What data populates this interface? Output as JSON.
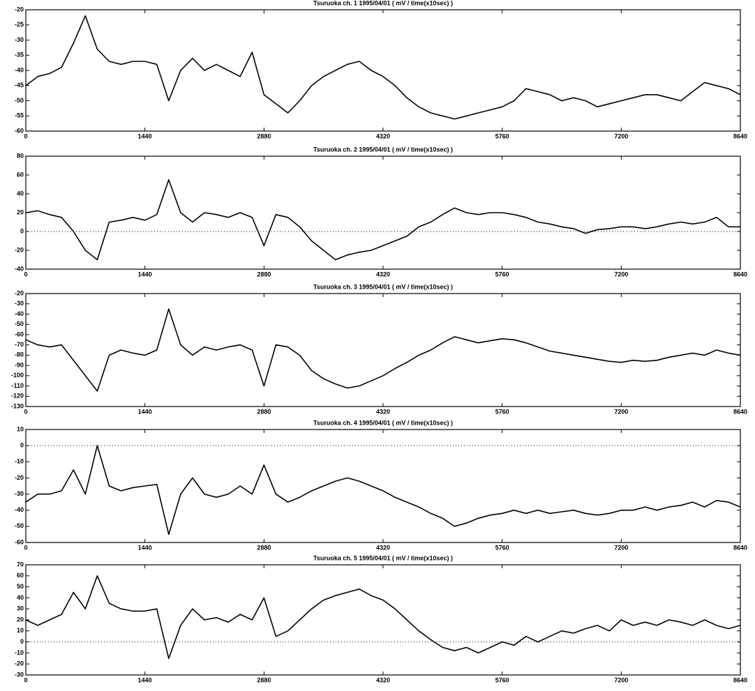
{
  "chart_data": [
    {
      "type": "line",
      "title": "Tsuruoka ch. 1 1995/04/01 ( mV / time(x10sec) )",
      "color": "#000000",
      "zero_line": false,
      "x": [
        0,
        144,
        288,
        432,
        576,
        720,
        864,
        1008,
        1152,
        1296,
        1440,
        1584,
        1728,
        1872,
        2016,
        2160,
        2304,
        2448,
        2592,
        2736,
        2880,
        3024,
        3168,
        3312,
        3456,
        3600,
        3744,
        3888,
        4032,
        4176,
        4320,
        4464,
        4608,
        4752,
        4896,
        5040,
        5184,
        5328,
        5472,
        5616,
        5760,
        5904,
        6048,
        6192,
        6336,
        6480,
        6624,
        6768,
        6912,
        7056,
        7200,
        7344,
        7488,
        7632,
        7776,
        7920,
        8064,
        8208,
        8352,
        8496,
        8640
      ],
      "values": [
        -45,
        -42,
        -41,
        -39,
        -31,
        -22,
        -33,
        -37,
        -38,
        -37,
        -37,
        -38,
        -50,
        -40,
        -36,
        -40,
        -38,
        -40,
        -42,
        -34,
        -48,
        -51,
        -54,
        -50,
        -45,
        -42,
        -40,
        -38,
        -37,
        -40,
        -42,
        -45,
        -49,
        -52,
        -54,
        -55,
        -56,
        -55,
        -54,
        -53,
        -52,
        -50,
        -46,
        -47,
        -48,
        -50,
        -49,
        -50,
        -52,
        -51,
        -50,
        -49,
        -48,
        -48,
        -49,
        -50,
        -47,
        -44,
        -45,
        -46,
        -48
      ],
      "xlim": [
        0,
        8640
      ],
      "xticks": [
        0,
        1440,
        2880,
        4320,
        5760,
        7200,
        8640
      ],
      "ylim": [
        -60,
        -20
      ],
      "yticks": [
        -60,
        -55,
        -50,
        -45,
        -40,
        -35,
        -30,
        -25,
        -20
      ]
    },
    {
      "type": "line",
      "title": "Tsuruoka ch. 2 1995/04/01 ( mV / time(x10sec) )",
      "color": "#000000",
      "zero_line": true,
      "x": [
        0,
        144,
        288,
        432,
        576,
        720,
        864,
        1008,
        1152,
        1296,
        1440,
        1584,
        1728,
        1872,
        2016,
        2160,
        2304,
        2448,
        2592,
        2736,
        2880,
        3024,
        3168,
        3312,
        3456,
        3600,
        3744,
        3888,
        4032,
        4176,
        4320,
        4464,
        4608,
        4752,
        4896,
        5040,
        5184,
        5328,
        5472,
        5616,
        5760,
        5904,
        6048,
        6192,
        6336,
        6480,
        6624,
        6768,
        6912,
        7056,
        7200,
        7344,
        7488,
        7632,
        7776,
        7920,
        8064,
        8208,
        8352,
        8496,
        8640
      ],
      "values": [
        20,
        22,
        18,
        15,
        0,
        -20,
        -30,
        10,
        12,
        15,
        12,
        18,
        55,
        20,
        10,
        20,
        18,
        15,
        20,
        15,
        -15,
        18,
        15,
        5,
        -10,
        -20,
        -30,
        -25,
        -22,
        -20,
        -15,
        -10,
        -5,
        5,
        10,
        18,
        25,
        20,
        18,
        20,
        20,
        18,
        15,
        10,
        8,
        5,
        3,
        -2,
        2,
        3,
        5,
        5,
        3,
        5,
        8,
        10,
        8,
        10,
        15,
        5,
        5
      ],
      "xlim": [
        0,
        8640
      ],
      "xticks": [
        0,
        1440,
        2880,
        4320,
        5760,
        7200,
        8640
      ],
      "ylim": [
        -40,
        80
      ],
      "yticks": [
        -40,
        -20,
        0,
        20,
        40,
        60,
        80
      ]
    },
    {
      "type": "line",
      "title": "Tsuruoka ch. 3 1995/04/01 ( mV / time(x10sec) )",
      "color": "#000000",
      "zero_line": false,
      "x": [
        0,
        144,
        288,
        432,
        576,
        720,
        864,
        1008,
        1152,
        1296,
        1440,
        1584,
        1728,
        1872,
        2016,
        2160,
        2304,
        2448,
        2592,
        2736,
        2880,
        3024,
        3168,
        3312,
        3456,
        3600,
        3744,
        3888,
        4032,
        4176,
        4320,
        4464,
        4608,
        4752,
        4896,
        5040,
        5184,
        5328,
        5472,
        5616,
        5760,
        5904,
        6048,
        6192,
        6336,
        6480,
        6624,
        6768,
        6912,
        7056,
        7200,
        7344,
        7488,
        7632,
        7776,
        7920,
        8064,
        8208,
        8352,
        8496,
        8640
      ],
      "values": [
        -65,
        -70,
        -72,
        -70,
        -85,
        -100,
        -115,
        -80,
        -75,
        -78,
        -80,
        -75,
        -35,
        -70,
        -80,
        -72,
        -75,
        -72,
        -70,
        -75,
        -110,
        -70,
        -72,
        -80,
        -95,
        -103,
        -108,
        -112,
        -110,
        -105,
        -100,
        -93,
        -87,
        -80,
        -75,
        -68,
        -62,
        -65,
        -68,
        -66,
        -64,
        -65,
        -68,
        -72,
        -76,
        -78,
        -80,
        -82,
        -84,
        -86,
        -87,
        -85,
        -86,
        -85,
        -82,
        -80,
        -78,
        -80,
        -75,
        -78,
        -80
      ],
      "xlim": [
        0,
        8640
      ],
      "xticks": [
        0,
        1440,
        2880,
        4320,
        5760,
        7200,
        8640
      ],
      "ylim": [
        -130,
        -20
      ],
      "yticks": [
        -130,
        -120,
        -110,
        -100,
        -90,
        -80,
        -70,
        -60,
        -50,
        -40,
        -30,
        -20
      ]
    },
    {
      "type": "line",
      "title": "Tsuruoka ch. 4 1995/04/01 ( mV / time(x10sec) )",
      "color": "#000000",
      "zero_line": true,
      "x": [
        0,
        144,
        288,
        432,
        576,
        720,
        864,
        1008,
        1152,
        1296,
        1440,
        1584,
        1728,
        1872,
        2016,
        2160,
        2304,
        2448,
        2592,
        2736,
        2880,
        3024,
        3168,
        3312,
        3456,
        3600,
        3744,
        3888,
        4032,
        4176,
        4320,
        4464,
        4608,
        4752,
        4896,
        5040,
        5184,
        5328,
        5472,
        5616,
        5760,
        5904,
        6048,
        6192,
        6336,
        6480,
        6624,
        6768,
        6912,
        7056,
        7200,
        7344,
        7488,
        7632,
        7776,
        7920,
        8064,
        8208,
        8352,
        8496,
        8640
      ],
      "values": [
        -35,
        -30,
        -30,
        -28,
        -15,
        -30,
        0,
        -25,
        -28,
        -26,
        -25,
        -24,
        -55,
        -30,
        -20,
        -30,
        -32,
        -30,
        -25,
        -30,
        -12,
        -30,
        -35,
        -32,
        -28,
        -25,
        -22,
        -20,
        -22,
        -25,
        -28,
        -32,
        -35,
        -38,
        -42,
        -45,
        -50,
        -48,
        -45,
        -43,
        -42,
        -40,
        -42,
        -40,
        -42,
        -41,
        -40,
        -42,
        -43,
        -42,
        -40,
        -40,
        -38,
        -40,
        -38,
        -37,
        -35,
        -38,
        -34,
        -35,
        -38
      ],
      "xlim": [
        0,
        8640
      ],
      "xticks": [
        0,
        1440,
        2880,
        4320,
        5760,
        7200,
        8640
      ],
      "ylim": [
        -60,
        10
      ],
      "yticks": [
        -60,
        -50,
        -40,
        -30,
        -20,
        -10,
        0,
        10
      ]
    },
    {
      "type": "line",
      "title": "Tsuruoka ch. 5 1995/04/01 ( mV / time(x10sec) )",
      "color": "#000000",
      "zero_line": true,
      "x": [
        0,
        144,
        288,
        432,
        576,
        720,
        864,
        1008,
        1152,
        1296,
        1440,
        1584,
        1728,
        1872,
        2016,
        2160,
        2304,
        2448,
        2592,
        2736,
        2880,
        3024,
        3168,
        3312,
        3456,
        3600,
        3744,
        3888,
        4032,
        4176,
        4320,
        4464,
        4608,
        4752,
        4896,
        5040,
        5184,
        5328,
        5472,
        5616,
        5760,
        5904,
        6048,
        6192,
        6336,
        6480,
        6624,
        6768,
        6912,
        7056,
        7200,
        7344,
        7488,
        7632,
        7776,
        7920,
        8064,
        8208,
        8352,
        8496,
        8640
      ],
      "values": [
        20,
        15,
        20,
        25,
        45,
        30,
        60,
        35,
        30,
        28,
        28,
        30,
        -15,
        15,
        30,
        20,
        22,
        18,
        25,
        20,
        40,
        5,
        10,
        20,
        30,
        38,
        42,
        45,
        48,
        42,
        38,
        30,
        20,
        10,
        2,
        -5,
        -8,
        -5,
        -10,
        -5,
        0,
        -3,
        5,
        0,
        5,
        10,
        8,
        12,
        15,
        10,
        20,
        15,
        18,
        15,
        20,
        18,
        15,
        20,
        15,
        12,
        15
      ],
      "xlim": [
        0,
        8640
      ],
      "xticks": [
        0,
        1440,
        2880,
        4320,
        5760,
        7200,
        8640
      ],
      "ylim": [
        -30,
        70
      ],
      "yticks": [
        -30,
        -20,
        -10,
        0,
        10,
        20,
        30,
        40,
        50,
        60,
        70
      ]
    }
  ]
}
